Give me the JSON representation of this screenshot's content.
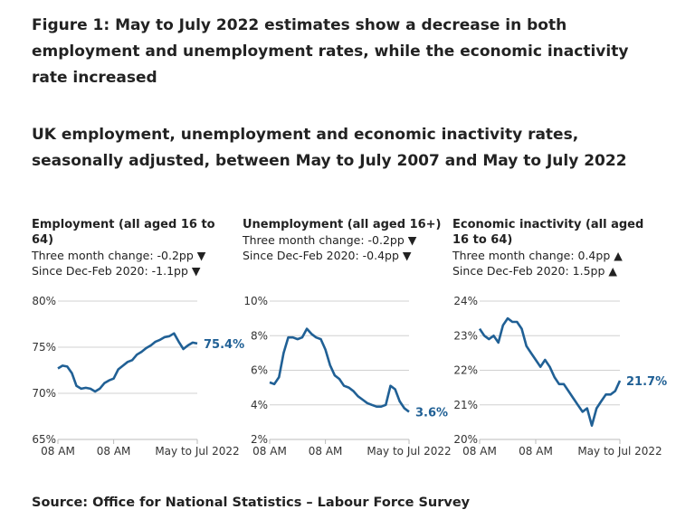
{
  "title": "Figure 1: May to July 2022 estimates show a decrease in both employment and unemployment rates, while the economic inactivity rate increased",
  "subtitle": "UK employment, unemployment and economic inactivity rates, seasonally adjusted, between May to July 2007 and May to July 2022",
  "source": "Source: Office for National Statistics – Labour Force Survey",
  "accent_color": "#206095",
  "panels": [
    {
      "heading": "Employment (all aged 16 to 64)",
      "change1": "Three month change: -0.2pp ▼",
      "change2": "Since Dec-Feb 2020: -1.1pp ▼"
    },
    {
      "heading": "Unemployment (all aged 16+)",
      "change1": "Three month change: -0.2pp ▼",
      "change2": "Since Dec-Feb 2020: -0.4pp ▼"
    },
    {
      "heading": "Economic inactivity (all aged 16 to 64)",
      "change1": "Three month change: 0.4pp ▲",
      "change2": "Since Dec-Feb 2020: 1.5pp ▲"
    }
  ],
  "chart_data": [
    {
      "type": "line",
      "title": "Employment (all aged 16 to 64)",
      "ylim": [
        65,
        80
      ],
      "yticks": [
        "65%",
        "70%",
        "75%",
        "80%"
      ],
      "ytick_values": [
        65,
        70,
        75,
        80
      ],
      "xticks": [
        "08 AM",
        "08 AM",
        "May to Jul 2022"
      ],
      "xtick_values": [
        2007.5,
        2013.5,
        2022.5
      ],
      "xlim": [
        2007.5,
        2022.5
      ],
      "grid": true,
      "end_label": "75.4%",
      "x": [
        2007.5,
        2008,
        2008.5,
        2009,
        2009.5,
        2010,
        2010.5,
        2011,
        2011.5,
        2012,
        2012.5,
        2013,
        2013.5,
        2014,
        2014.5,
        2015,
        2015.5,
        2016,
        2016.5,
        2017,
        2017.5,
        2018,
        2018.5,
        2019,
        2019.5,
        2020,
        2020.5,
        2021,
        2021.5,
        2022,
        2022.5
      ],
      "y": [
        72.7,
        73.0,
        72.9,
        72.2,
        70.8,
        70.5,
        70.6,
        70.5,
        70.2,
        70.5,
        71.1,
        71.4,
        71.6,
        72.6,
        73.0,
        73.4,
        73.6,
        74.2,
        74.5,
        74.9,
        75.2,
        75.6,
        75.8,
        76.1,
        76.2,
        76.5,
        75.6,
        74.8,
        75.2,
        75.5,
        75.4
      ]
    },
    {
      "type": "line",
      "title": "Unemployment (all aged 16+)",
      "ylim": [
        2,
        10
      ],
      "yticks": [
        "2%",
        "4%",
        "6%",
        "8%",
        "10%"
      ],
      "ytick_values": [
        2,
        4,
        6,
        8,
        10
      ],
      "xticks": [
        "08 AM",
        "08 AM",
        "May to Jul 2022"
      ],
      "xtick_values": [
        2007.5,
        2013.5,
        2022.5
      ],
      "xlim": [
        2007.5,
        2022.5
      ],
      "grid": true,
      "end_label": "3.6%",
      "x": [
        2007.5,
        2008,
        2008.5,
        2009,
        2009.5,
        2010,
        2010.5,
        2011,
        2011.5,
        2012,
        2012.5,
        2013,
        2013.5,
        2014,
        2014.5,
        2015,
        2015.5,
        2016,
        2016.5,
        2017,
        2017.5,
        2018,
        2018.5,
        2019,
        2019.5,
        2020,
        2020.5,
        2021,
        2021.5,
        2022,
        2022.5
      ],
      "y": [
        5.3,
        5.2,
        5.6,
        7.0,
        7.9,
        7.9,
        7.8,
        7.9,
        8.4,
        8.1,
        7.9,
        7.8,
        7.2,
        6.3,
        5.7,
        5.5,
        5.1,
        5.0,
        4.8,
        4.5,
        4.3,
        4.1,
        4.0,
        3.9,
        3.9,
        4.0,
        5.1,
        4.9,
        4.2,
        3.8,
        3.6
      ]
    },
    {
      "type": "line",
      "title": "Economic inactivity (all aged 16 to 64)",
      "ylim": [
        20,
        24
      ],
      "yticks": [
        "20%",
        "21%",
        "22%",
        "23%",
        "24%"
      ],
      "ytick_values": [
        20,
        21,
        22,
        23,
        24
      ],
      "xticks": [
        "08 AM",
        "08 AM",
        "May to Jul 2022"
      ],
      "xtick_values": [
        2007.5,
        2013.5,
        2022.5
      ],
      "xlim": [
        2007.5,
        2022.5
      ],
      "grid": true,
      "end_label": "21.7%",
      "x": [
        2007.5,
        2008,
        2008.5,
        2009,
        2009.5,
        2010,
        2010.5,
        2011,
        2011.5,
        2012,
        2012.5,
        2013,
        2013.5,
        2014,
        2014.5,
        2015,
        2015.5,
        2016,
        2016.5,
        2017,
        2017.5,
        2018,
        2018.5,
        2019,
        2019.5,
        2020,
        2020.5,
        2021,
        2021.5,
        2022,
        2022.5
      ],
      "y": [
        23.2,
        23.0,
        22.9,
        23.0,
        22.8,
        23.3,
        23.5,
        23.4,
        23.4,
        23.2,
        22.7,
        22.5,
        22.3,
        22.1,
        22.3,
        22.1,
        21.8,
        21.6,
        21.6,
        21.4,
        21.2,
        21.0,
        20.8,
        20.9,
        20.4,
        20.9,
        21.1,
        21.3,
        21.3,
        21.4,
        21.7
      ]
    }
  ]
}
